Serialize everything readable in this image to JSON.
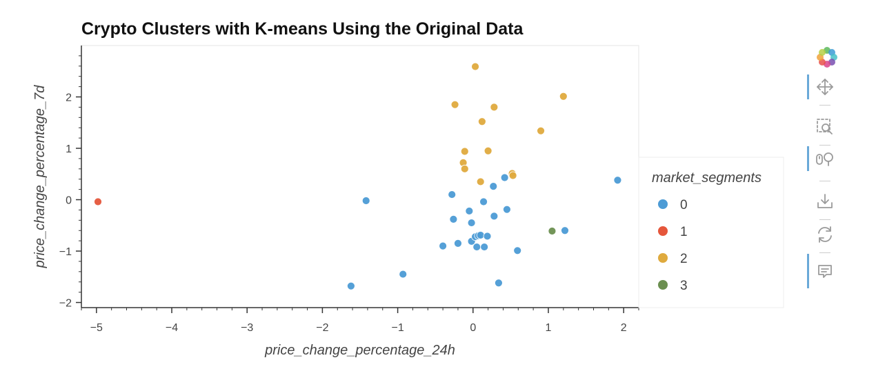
{
  "chart_data": {
    "type": "scatter",
    "title": "Crypto Clusters with K-means Using the Original Data",
    "xlabel": "price_change_percentage_24h",
    "ylabel": "price_change_percentage_7d",
    "xlim": [
      -5.2,
      2.2
    ],
    "ylim": [
      -2.1,
      3.0
    ],
    "x_ticks": [
      -5,
      -4,
      -3,
      -2,
      -1,
      0,
      1,
      2
    ],
    "x_tick_labels": [
      "−5",
      "−4",
      "−3",
      "−2",
      "−1",
      "0",
      "1",
      "2"
    ],
    "y_ticks": [
      -2,
      -1,
      0,
      1,
      2
    ],
    "y_tick_labels": [
      "−2",
      "−1",
      "0",
      "1",
      "2"
    ],
    "grid": false,
    "legend": {
      "title": "market_segments",
      "placement": "right"
    },
    "series": [
      {
        "name": "0",
        "color": "#4c9bd5",
        "points": [
          [
            -1.42,
            -0.02
          ],
          [
            -1.62,
            -1.68
          ],
          [
            -0.93,
            -1.45
          ],
          [
            -0.28,
            0.1
          ],
          [
            -0.26,
            -0.38
          ],
          [
            -0.4,
            -0.9
          ],
          [
            -0.2,
            -0.85
          ],
          [
            -0.05,
            -0.22
          ],
          [
            -0.02,
            -0.45
          ],
          [
            -0.02,
            -0.81
          ],
          [
            0.03,
            -0.72
          ],
          [
            0.07,
            -0.7
          ],
          [
            0.1,
            -0.69
          ],
          [
            0.05,
            -0.92
          ],
          [
            0.15,
            -0.92
          ],
          [
            0.19,
            -0.71
          ],
          [
            0.14,
            -0.04
          ],
          [
            0.28,
            -0.32
          ],
          [
            0.27,
            0.26
          ],
          [
            0.42,
            0.43
          ],
          [
            0.45,
            -0.19
          ],
          [
            0.59,
            -0.99
          ],
          [
            0.34,
            -1.62
          ],
          [
            1.22,
            -0.6
          ],
          [
            1.92,
            0.38
          ]
        ]
      },
      {
        "name": "1",
        "color": "#e5563b",
        "points": [
          [
            -4.98,
            -0.04
          ]
        ]
      },
      {
        "name": "2",
        "color": "#dfaa3e",
        "points": [
          [
            0.03,
            2.59
          ],
          [
            -0.24,
            1.85
          ],
          [
            0.28,
            1.8
          ],
          [
            0.12,
            1.52
          ],
          [
            1.2,
            2.01
          ],
          [
            0.9,
            1.34
          ],
          [
            -0.11,
            0.94
          ],
          [
            0.2,
            0.95
          ],
          [
            -0.13,
            0.72
          ],
          [
            -0.11,
            0.6
          ],
          [
            0.1,
            0.35
          ],
          [
            0.52,
            0.51
          ],
          [
            0.53,
            0.47
          ]
        ]
      },
      {
        "name": "3",
        "color": "#6b8f50",
        "points": [
          [
            1.05,
            -0.61
          ]
        ]
      }
    ]
  },
  "toolbar": {
    "tools": [
      {
        "name": "bokeh-logo-icon",
        "active": false
      },
      {
        "name": "pan-icon",
        "active": true
      },
      {
        "name": "box-zoom-icon",
        "active": false
      },
      {
        "name": "wheel-zoom-icon",
        "active": true
      },
      {
        "name": "save-icon",
        "active": false
      },
      {
        "name": "reset-icon",
        "active": false
      },
      {
        "name": "hover-icon",
        "active": true
      }
    ],
    "active_color": "#6aa9d8",
    "icon_color": "#9a9a9a"
  }
}
